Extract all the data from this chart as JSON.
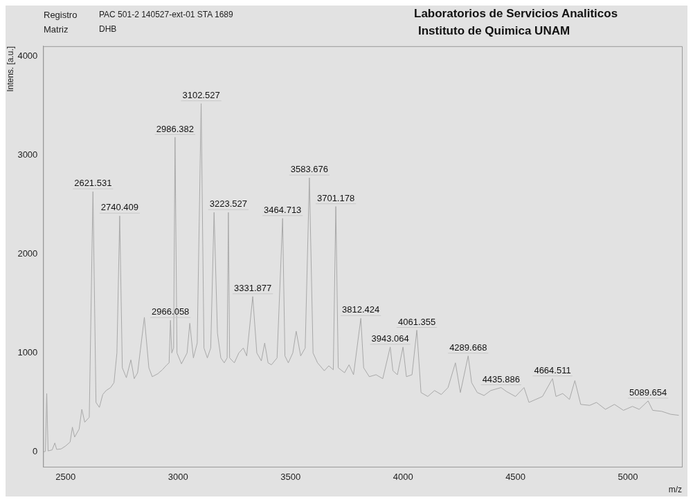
{
  "chart_data": {
    "type": "line",
    "title": "Laboratorios de Servicios Analiticos",
    "subtitle": "Instituto de Quimica UNAM",
    "xlabel": "m/z",
    "ylabel": "Intens. [a.u.]",
    "annotations": [
      "Registro",
      "PAC 501-2 140527-ext-01 STA 1689",
      "Matriz",
      "DHB",
      {
        "text": "2621.531",
        "x": 2621.531,
        "y": 2630
      },
      {
        "text": "2740.409",
        "x": 2740.409,
        "y": 2385
      },
      {
        "text": "2966.058",
        "x": 2966.058,
        "y": 1330
      },
      {
        "text": "2986.382",
        "x": 2986.382,
        "y": 3180
      },
      {
        "text": "3102.527",
        "x": 3102.527,
        "y": 3520
      },
      {
        "text": "3223.527",
        "x": 3223.527,
        "y": 2420
      },
      {
        "text": "3331.877",
        "x": 3331.877,
        "y": 1570
      },
      {
        "text": "3464.713",
        "x": 3464.713,
        "y": 2360
      },
      {
        "text": "3583.676",
        "x": 3583.676,
        "y": 2770
      },
      {
        "text": "3701.178",
        "x": 3701.178,
        "y": 2480
      },
      {
        "text": "3812.424",
        "x": 3812.424,
        "y": 1350
      },
      {
        "text": "3943.064",
        "x": 3943.064,
        "y": 1060
      },
      {
        "text": "4061.355",
        "x": 4061.355,
        "y": 1230
      },
      {
        "text": "4289.668",
        "x": 4289.668,
        "y": 970
      },
      {
        "text": "4435.886",
        "x": 4435.886,
        "y": 650
      },
      {
        "text": "4664.511",
        "x": 4664.511,
        "y": 740
      },
      {
        "text": "5089.654",
        "x": 5089.654,
        "y": 515
      }
    ],
    "x": [
      2400,
      2410,
      2416,
      2422,
      2440,
      2452,
      2460,
      2480,
      2500,
      2520,
      2530,
      2540,
      2560,
      2572,
      2585,
      2605,
      2621.531,
      2635,
      2650,
      2665,
      2680,
      2700,
      2715,
      2728,
      2740.409,
      2752,
      2770,
      2790,
      2805,
      2820,
      2850,
      2870,
      2885,
      2910,
      2930,
      2950,
      2960,
      2966.058,
      2972,
      2980,
      2986.382,
      2995,
      3015,
      3040,
      3052,
      3068,
      3085,
      3102.527,
      3115,
      3130,
      3145,
      3160,
      3175,
      3190,
      3205,
      3218,
      3223.527,
      3229,
      3250,
      3270,
      3290,
      3305,
      3331.877,
      3350,
      3370,
      3385,
      3400,
      3415,
      3440,
      3464.713,
      3475,
      3490,
      3510,
      3525,
      3545,
      3565,
      3583.676,
      3600,
      3620,
      3650,
      3670,
      3690,
      3701.178,
      3712,
      3740,
      3760,
      3780,
      3812.424,
      3825,
      3850,
      3880,
      3910,
      3943.064,
      3955,
      3975,
      4000,
      4015,
      4040,
      4061.355,
      4080,
      4110,
      4140,
      4170,
      4200,
      4233,
      4255,
      4289.668,
      4305,
      4330,
      4360,
      4390,
      4435.886,
      4460,
      4500,
      4538,
      4560,
      4590,
      4620,
      4664.511,
      4680,
      4710,
      4740,
      4764,
      4790,
      4830,
      4860,
      4900,
      4940,
      4980,
      5020,
      5050,
      5089.654,
      5110,
      5150,
      5190,
      5226
    ],
    "series": [
      {
        "color": "#a8a8a8",
        "values": [
          0,
          5,
          590,
          10,
          20,
          90,
          25,
          30,
          60,
          100,
          250,
          150,
          230,
          430,
          300,
          350,
          2630,
          500,
          450,
          580,
          620,
          650,
          700,
          1000,
          2385,
          850,
          750,
          930,
          740,
          800,
          1360,
          850,
          760,
          790,
          830,
          880,
          900,
          1330,
          1000,
          1050,
          3180,
          1000,
          890,
          1000,
          1300,
          950,
          1100,
          3520,
          1050,
          950,
          1050,
          2420,
          1200,
          950,
          900,
          950,
          2420,
          950,
          900,
          1000,
          1050,
          970,
          1570,
          1000,
          920,
          1100,
          900,
          880,
          950,
          2360,
          970,
          900,
          1000,
          1220,
          970,
          1050,
          2770,
          1000,
          900,
          820,
          870,
          830,
          2480,
          850,
          800,
          880,
          780,
          1350,
          850,
          760,
          780,
          740,
          1060,
          820,
          780,
          1060,
          760,
          780,
          1230,
          600,
          560,
          620,
          580,
          650,
          900,
          600,
          970,
          700,
          600,
          570,
          620,
          650,
          610,
          560,
          650,
          500,
          530,
          560,
          740,
          560,
          590,
          530,
          720,
          480,
          470,
          500,
          430,
          480,
          420,
          460,
          430,
          515,
          420,
          410,
          380,
          370
        ]
      }
    ],
    "xlim": [
      2400,
      5240
    ],
    "ylim": [
      -150,
      4100
    ],
    "xticks": [
      2500,
      3000,
      3500,
      4000,
      4500,
      5000
    ],
    "yticks": [
      0,
      1000,
      2000,
      3000,
      4000
    ],
    "grid": false,
    "legend": false,
    "marker": "none",
    "line_style": "solid"
  }
}
